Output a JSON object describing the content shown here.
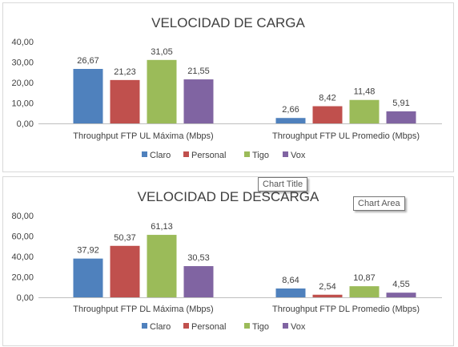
{
  "colors": {
    "Claro": "#4F81BD",
    "Personal": "#C0504D",
    "Tigo": "#9BBB59",
    "Vox": "#8064A2"
  },
  "tooltips": {
    "chart_title": "Chart Title",
    "chart_area": "Chart Area"
  },
  "chart_data": [
    {
      "type": "bar",
      "title": "VELOCIDAD DE CARGA",
      "categories": [
        "Throughput FTP UL Máxima (Mbps)",
        "Throughput FTP UL Promedio (Mbps)"
      ],
      "series": [
        {
          "name": "Claro",
          "values": [
            26.67,
            2.66
          ],
          "labels": [
            "26,67",
            "2,66"
          ]
        },
        {
          "name": "Personal",
          "values": [
            21.23,
            8.42
          ],
          "labels": [
            "21,23",
            "8,42"
          ]
        },
        {
          "name": "Tigo",
          "values": [
            31.05,
            11.48
          ],
          "labels": [
            "31,05",
            "11,48"
          ]
        },
        {
          "name": "Vox",
          "values": [
            21.55,
            5.91
          ],
          "labels": [
            "21,55",
            "5,91"
          ]
        }
      ],
      "ylim": [
        0,
        40
      ],
      "yticks": [
        0,
        10,
        20,
        30,
        40
      ],
      "ytick_labels": [
        "0,00",
        "10,00",
        "20,00",
        "30,00",
        "40,00"
      ],
      "legend_position": "bottom",
      "grid": false
    },
    {
      "type": "bar",
      "title": "VELOCIDAD DE DESCARGA",
      "categories": [
        "Throughput FTP DL Máxima (Mbps)",
        "Throughput FTP DL Promedio (Mbps)"
      ],
      "series": [
        {
          "name": "Claro",
          "values": [
            37.92,
            8.64
          ],
          "labels": [
            "37,92",
            "8,64"
          ]
        },
        {
          "name": "Personal",
          "values": [
            50.37,
            2.54
          ],
          "labels": [
            "50,37",
            "2,54"
          ]
        },
        {
          "name": "Tigo",
          "values": [
            61.13,
            10.87
          ],
          "labels": [
            "61,13",
            "10,87"
          ]
        },
        {
          "name": "Vox",
          "values": [
            30.53,
            4.55
          ],
          "labels": [
            "30,53",
            "4,55"
          ]
        }
      ],
      "ylim": [
        0,
        80
      ],
      "yticks": [
        0,
        20,
        40,
        60,
        80
      ],
      "ytick_labels": [
        "0,00",
        "20,00",
        "40,00",
        "60,00",
        "80,00"
      ],
      "legend_position": "bottom",
      "grid": false
    }
  ]
}
